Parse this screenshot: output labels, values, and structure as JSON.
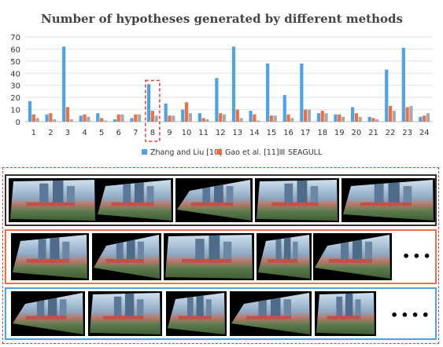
{
  "chart_data": {
    "type": "bar",
    "title": "Number of hypotheses generated by different methods",
    "categories": [
      "1",
      "2",
      "3",
      "4",
      "5",
      "6",
      "7",
      "8",
      "9",
      "10",
      "11",
      "12",
      "13",
      "14",
      "15",
      "16",
      "17",
      "18",
      "19",
      "20",
      "21",
      "22",
      "23",
      "24"
    ],
    "ylim": [
      0,
      70
    ],
    "yticks": [
      0,
      10,
      20,
      30,
      40,
      50,
      60,
      70
    ],
    "grid": "horizontal",
    "legend_position": "bottom",
    "highlighted_category": "8",
    "series": [
      {
        "name": "Zhang and Liu [10]",
        "color": "#4da3e6",
        "values": [
          17,
          6,
          62,
          5,
          7,
          2,
          3,
          31,
          15,
          10,
          7,
          36,
          62,
          9,
          48,
          22,
          48,
          7,
          6,
          12,
          4,
          43,
          61,
          4
        ]
      },
      {
        "name": "Gao et al. [11]",
        "color": "#ee6f3f",
        "values": [
          6,
          7,
          12,
          6,
          3,
          6,
          6,
          9,
          5,
          16,
          3,
          7,
          10,
          6,
          5,
          6,
          10,
          9,
          6,
          7,
          3,
          13,
          12,
          5
        ]
      },
      {
        "name": "SEAGULL",
        "color": "#a9a9a9",
        "values": [
          3,
          2,
          2,
          4,
          1,
          6,
          6,
          5,
          5,
          7,
          2,
          6,
          3,
          1,
          5,
          3,
          10,
          7,
          4,
          4,
          2,
          9,
          13,
          7
        ]
      }
    ]
  },
  "panels": {
    "row1_color": "#333333",
    "row2_color": "#ee6f3f",
    "row3_color": "#4da3e6",
    "outer_color": "#e33b3b",
    "row2_ellipsis": "•••",
    "row3_ellipsis": "••••"
  }
}
